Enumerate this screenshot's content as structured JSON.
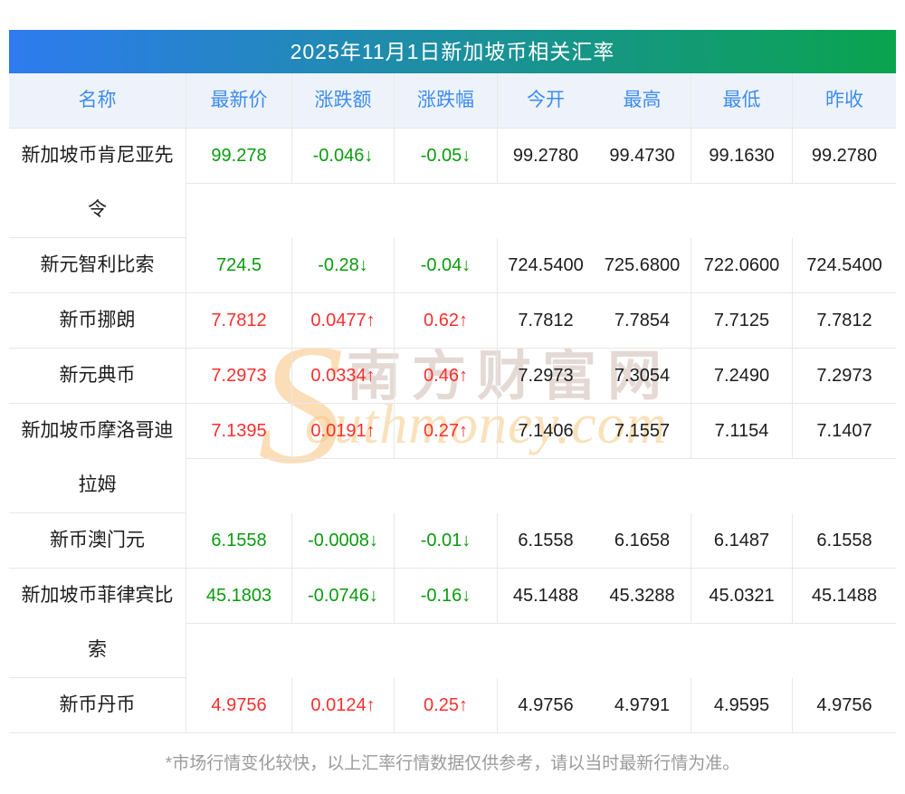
{
  "page": {
    "title": "2025年11月1日新加坡币相关汇率",
    "footnote": "*市场行情变化较快，以上汇率行情数据仅供参考，请以当时最新行情为准。"
  },
  "colors": {
    "up": "#fa2f2f",
    "down": "#0a9b0f",
    "header_text": "#3e8cf0",
    "header_bg": "#eef3fb",
    "border": "#e8e8e8",
    "title_gradient_left": "#2e7bf0",
    "title_gradient_right": "#0aa44e"
  },
  "arrows": {
    "up": "↑",
    "down": "↓"
  },
  "watermark": {
    "initial": "S",
    "cn_text": "南方财富网",
    "script_text": "outhmoney.com"
  },
  "table": {
    "headers": [
      "名称",
      "最新价",
      "涨跌额",
      "涨跌幅",
      "今开",
      "最高",
      "最低",
      "昨收"
    ],
    "rows": [
      {
        "name": "新加坡币肯尼亚先令",
        "latest": "99.278",
        "change": "-0.046",
        "change_pct": "-0.05",
        "trend": "down",
        "open": "99.2780",
        "high": "99.4730",
        "low": "99.1630",
        "prev_close": "99.2780"
      },
      {
        "name": "新元智利比索",
        "latest": "724.5",
        "change": "-0.28",
        "change_pct": "-0.04",
        "trend": "down",
        "open": "724.5400",
        "high": "725.6800",
        "low": "722.0600",
        "prev_close": "724.5400"
      },
      {
        "name": "新币挪朗",
        "latest": "7.7812",
        "change": "0.0477",
        "change_pct": "0.62",
        "trend": "up",
        "open": "7.7812",
        "high": "7.7854",
        "low": "7.7125",
        "prev_close": "7.7812"
      },
      {
        "name": "新元典币",
        "latest": "7.2973",
        "change": "0.0334",
        "change_pct": "0.46",
        "trend": "up",
        "open": "7.2973",
        "high": "7.3054",
        "low": "7.2490",
        "prev_close": "7.2973"
      },
      {
        "name": "新加坡币摩洛哥迪拉姆",
        "latest": "7.1395",
        "change": "0.0191",
        "change_pct": "0.27",
        "trend": "up",
        "open": "7.1406",
        "high": "7.1557",
        "low": "7.1154",
        "prev_close": "7.1407"
      },
      {
        "name": "新币澳门元",
        "latest": "6.1558",
        "change": "-0.0008",
        "change_pct": "-0.01",
        "trend": "down",
        "open": "6.1558",
        "high": "6.1658",
        "low": "6.1487",
        "prev_close": "6.1558"
      },
      {
        "name": "新加坡币菲律宾比索",
        "latest": "45.1803",
        "change": "-0.0746",
        "change_pct": "-0.16",
        "trend": "down",
        "open": "45.1488",
        "high": "45.3288",
        "low": "45.0321",
        "prev_close": "45.1488"
      },
      {
        "name": "新币丹币",
        "latest": "4.9756",
        "change": "0.0124",
        "change_pct": "0.25",
        "trend": "up",
        "open": "4.9756",
        "high": "4.9791",
        "low": "4.9595",
        "prev_close": "4.9756"
      }
    ]
  }
}
